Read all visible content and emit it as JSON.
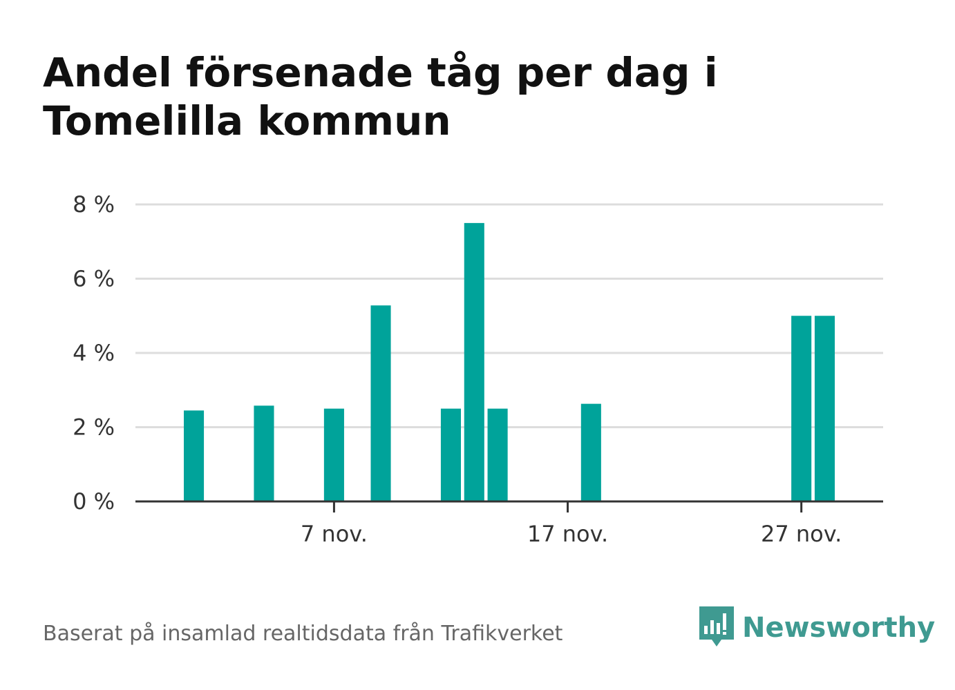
{
  "title": "Andel försenade tåg per dag i Tomelilla kommun",
  "source": "Baserat på insamlad realtidsdata från Trafikverket",
  "brand": {
    "name": "Newsworthy",
    "icon": "bar-chart-speech-bubble-icon",
    "color": "#3f9a91"
  },
  "chart_data": {
    "type": "bar",
    "title": "Andel försenade tåg per dag i Tomelilla kommun",
    "xlabel": "",
    "ylabel": "",
    "bar_color": "#00a39a",
    "grid": true,
    "x_range": [
      "2023-10-30",
      "2023-12-01"
    ],
    "ylim": [
      0,
      8
    ],
    "y_ticks": [
      0,
      2,
      4,
      6,
      8
    ],
    "y_tick_labels": [
      "0 %",
      "2 %",
      "4 %",
      "6 %",
      "8 %"
    ],
    "x_ticks": [
      "2023-11-07",
      "2023-11-17",
      "2023-11-27"
    ],
    "x_tick_labels": [
      "7 nov.",
      "17 nov.",
      "27 nov."
    ],
    "bars": [
      {
        "date": "2023-11-01",
        "value": 2.45
      },
      {
        "date": "2023-11-04",
        "value": 2.58
      },
      {
        "date": "2023-11-07",
        "value": 2.5
      },
      {
        "date": "2023-11-09",
        "value": 5.28
      },
      {
        "date": "2023-11-12",
        "value": 2.5
      },
      {
        "date": "2023-11-13",
        "value": 7.5
      },
      {
        "date": "2023-11-14",
        "value": 2.5
      },
      {
        "date": "2023-11-18",
        "value": 2.63
      },
      {
        "date": "2023-11-27",
        "value": 5.0
      },
      {
        "date": "2023-11-28",
        "value": 5.0
      }
    ]
  }
}
